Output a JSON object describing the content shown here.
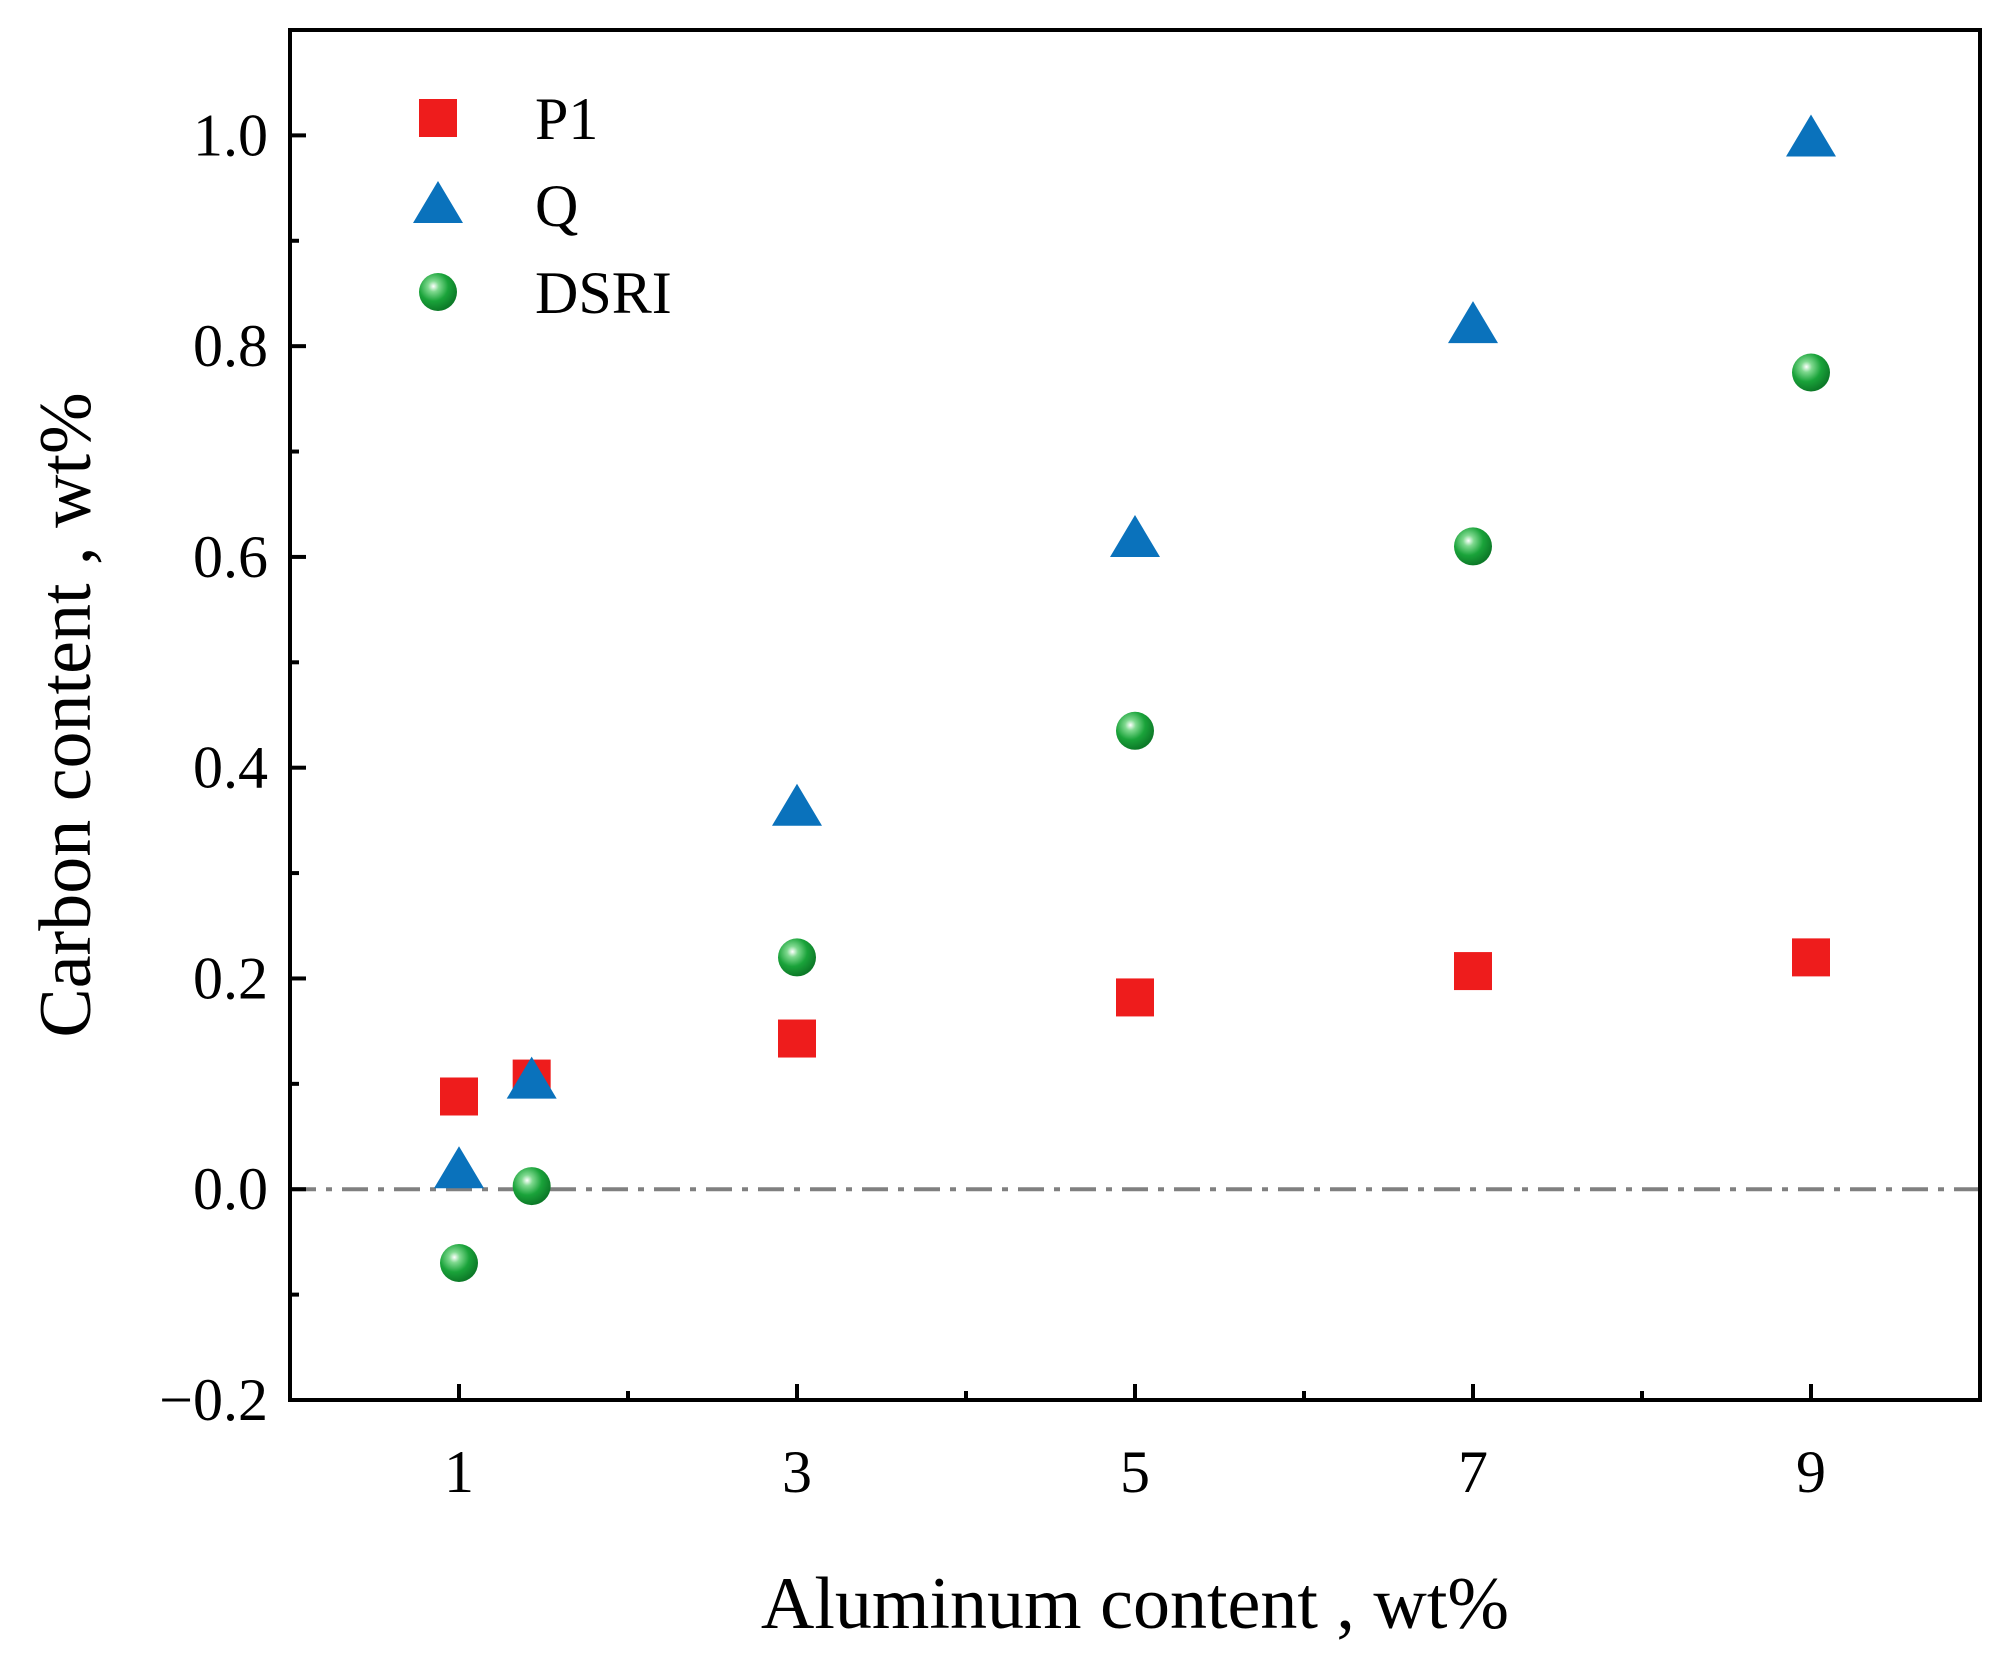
{
  "chart_data": {
    "type": "scatter",
    "title": "",
    "xlabel": "Aluminum content , wt%",
    "ylabel": "Carbon content , wt%",
    "xlim": [
      0,
      10
    ],
    "ylim": [
      -0.2,
      1.1
    ],
    "x_ticks": [
      1,
      3,
      5,
      7,
      9
    ],
    "x_tick_labels": [
      "1",
      "3",
      "5",
      "7",
      "9"
    ],
    "x_minor_ticks": [
      2,
      4,
      6,
      8
    ],
    "y_ticks": [
      -0.2,
      0.0,
      0.2,
      0.4,
      0.6,
      0.8,
      1.0
    ],
    "y_tick_labels": [
      "−0.2",
      "0.0",
      "0.2",
      "0.4",
      "0.6",
      "0.8",
      "1.0"
    ],
    "y_minor_ticks": [
      -0.1,
      0.1,
      0.3,
      0.5,
      0.7,
      0.9
    ],
    "reference_line": {
      "y": 0.0,
      "style": "dash-dot",
      "color": "#808080"
    },
    "legend_position": "top-left",
    "series": [
      {
        "name": "P1",
        "marker": "square",
        "color": "#ee1c1c",
        "x": [
          1,
          1.43,
          3,
          5,
          7,
          9
        ],
        "y": [
          0.088,
          0.105,
          0.143,
          0.182,
          0.207,
          0.22
        ]
      },
      {
        "name": "Q",
        "marker": "triangle",
        "color": "#0a72bc",
        "x": [
          1,
          1.43,
          3,
          5,
          7,
          9
        ],
        "y": [
          0.018,
          0.103,
          0.362,
          0.617,
          0.82,
          0.997
        ]
      },
      {
        "name": "DSRI",
        "marker": "sphere",
        "color": "#1aa33a",
        "x": [
          1,
          1.43,
          3,
          5,
          7,
          9
        ],
        "y": [
          -0.07,
          0.003,
          0.22,
          0.435,
          0.61,
          0.775
        ]
      }
    ]
  }
}
